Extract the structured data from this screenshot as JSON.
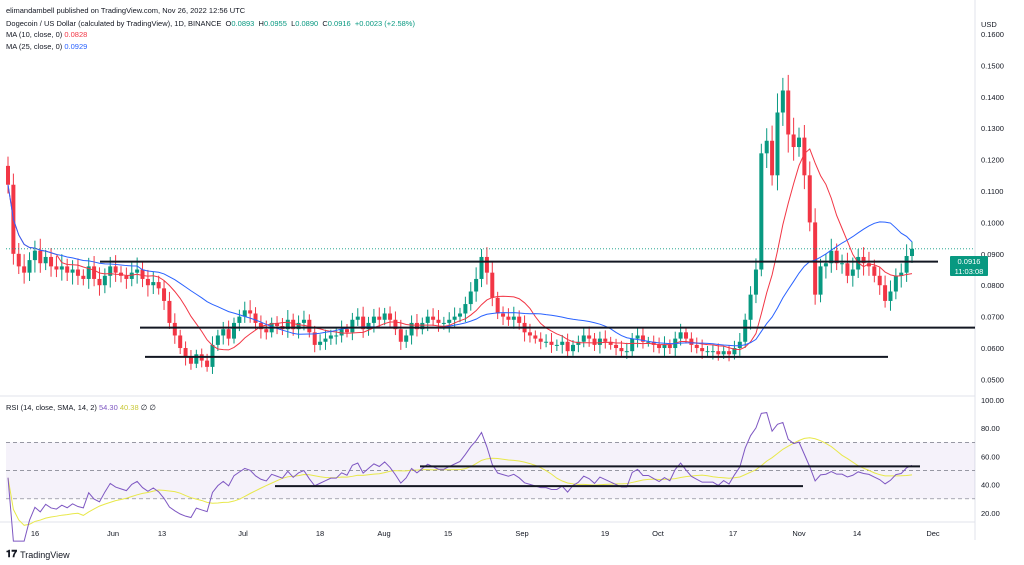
{
  "publisher": "elimandambell published on TradingView.com, Nov 26, 2022 12:56 UTC",
  "header": {
    "symbol": "Dogecoin / US Dollar (calculated by TradingView), 1D, BINANCE",
    "open_label": "O",
    "open": "0.0893",
    "high_label": "H",
    "high": "0.0955",
    "low_label": "L",
    "low": "0.0890",
    "close_label": "C",
    "close": "0.0916",
    "change": "+0.0023 (+2.58%)"
  },
  "indicators": {
    "ma10_label": "MA (10, close, 0)",
    "ma10_value": "0.0828",
    "ma25_label": "MA (25, close, 0)",
    "ma25_value": "0.0929",
    "rsi_label": "RSI (14, close, SMA, 14, 2)",
    "rsi_value": "54.30",
    "rsi_sma_value": "40.38",
    "rsi_extra": "∅ ∅"
  },
  "price_badge": {
    "price": "0.0916",
    "countdown": "11:03:08",
    "color": "#089981"
  },
  "footer": {
    "logo": "TradingView"
  },
  "colors": {
    "up": "#089981",
    "down": "#f23645",
    "ma10": "#f23645",
    "ma25": "#2962ff",
    "rsi": "#7e57c2",
    "rsi_sma": "#e8e84a"
  },
  "chart_data": {
    "type": "candlestick",
    "price_axis_label": "USD",
    "price_ticks": [
      "0.1600",
      "0.1500",
      "0.1400",
      "0.1300",
      "0.1200",
      "0.1100",
      "0.1000",
      "0.0900",
      "0.0800",
      "0.0700",
      "0.0600",
      "0.0500"
    ],
    "rsi_ticks": [
      "100.00",
      "80.00",
      "60.00",
      "40.00",
      "20.00"
    ],
    "x_ticks": [
      "16",
      "Jun",
      "13",
      "Jul",
      "18",
      "Aug",
      "15",
      "Sep",
      "19",
      "Oct",
      "17",
      "Nov",
      "14",
      "Dec"
    ],
    "ylim": [
      0.046,
      0.167
    ],
    "rsi_ylim": [
      15,
      100
    ],
    "rsi_bands": [
      30,
      50,
      70
    ],
    "close_series": [
      0.112,
      0.09,
      0.086,
      0.084,
      0.088,
      0.091,
      0.087,
      0.089,
      0.086,
      0.085,
      0.086,
      0.084,
      0.085,
      0.083,
      0.082,
      0.086,
      0.082,
      0.08,
      0.083,
      0.086,
      0.084,
      0.083,
      0.082,
      0.084,
      0.085,
      0.082,
      0.08,
      0.081,
      0.079,
      0.075,
      0.068,
      0.064,
      0.06,
      0.057,
      0.055,
      0.058,
      0.056,
      0.054,
      0.061,
      0.064,
      0.066,
      0.063,
      0.068,
      0.07,
      0.072,
      0.071,
      0.068,
      0.066,
      0.065,
      0.068,
      0.067,
      0.066,
      0.069,
      0.066,
      0.068,
      0.069,
      0.065,
      0.061,
      0.062,
      0.063,
      0.064,
      0.064,
      0.066,
      0.065,
      0.069,
      0.07,
      0.066,
      0.068,
      0.07,
      0.069,
      0.071,
      0.069,
      0.066,
      0.062,
      0.064,
      0.068,
      0.066,
      0.068,
      0.07,
      0.069,
      0.068,
      0.068,
      0.069,
      0.07,
      0.071,
      0.074,
      0.078,
      0.082,
      0.089,
      0.084,
      0.076,
      0.071,
      0.07,
      0.069,
      0.07,
      0.068,
      0.065,
      0.064,
      0.063,
      0.062,
      0.062,
      0.061,
      0.061,
      0.062,
      0.059,
      0.061,
      0.062,
      0.064,
      0.063,
      0.061,
      0.063,
      0.062,
      0.061,
      0.06,
      0.059,
      0.059,
      0.063,
      0.064,
      0.062,
      0.062,
      0.061,
      0.06,
      0.061,
      0.06,
      0.063,
      0.065,
      0.063,
      0.061,
      0.06,
      0.059,
      0.059,
      0.059,
      0.058,
      0.059,
      0.058,
      0.06,
      0.062,
      0.069,
      0.077,
      0.085,
      0.122,
      0.126,
      0.115,
      0.135,
      0.142,
      0.128,
      0.124,
      0.127,
      0.115,
      0.1,
      0.077,
      0.086,
      0.087,
      0.091,
      0.087,
      0.087,
      0.083,
      0.085,
      0.089,
      0.087,
      0.086,
      0.083,
      0.08,
      0.075,
      0.078,
      0.083,
      0.084,
      0.0893,
      0.0916
    ],
    "ma10_series_note": "10-period moving average of close",
    "ma25_series_note": "25-period moving average of close",
    "horizontal_lines": [
      0.0875,
      0.0665,
      0.0572
    ],
    "rsi_lines": [
      53,
      39
    ]
  }
}
